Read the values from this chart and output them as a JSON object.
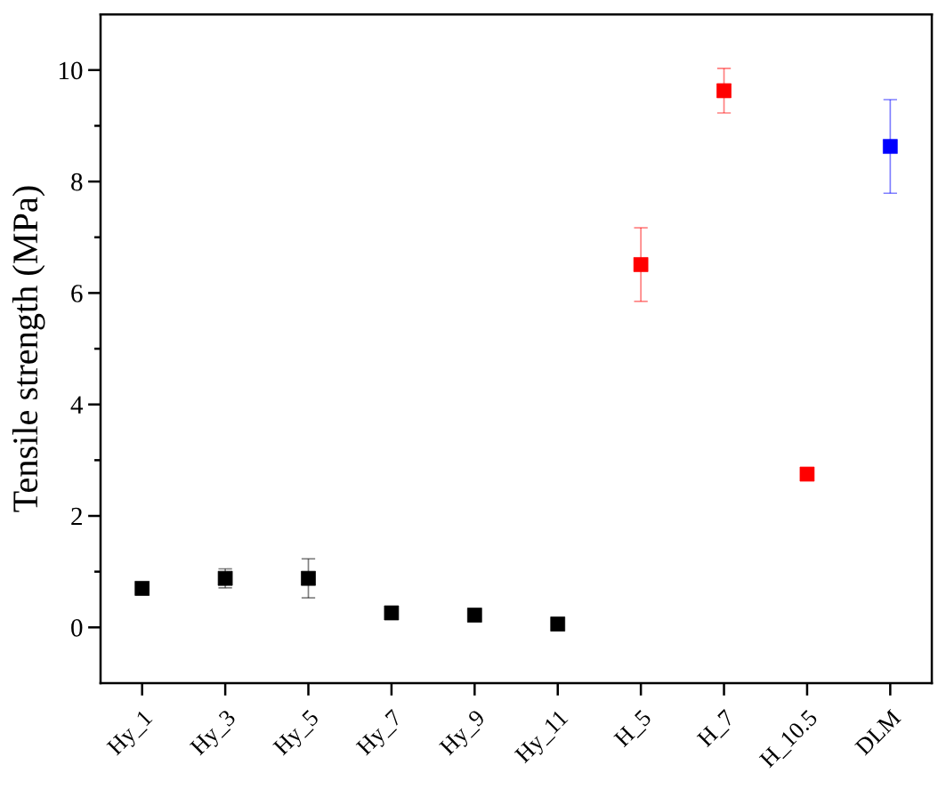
{
  "chart_data": {
    "type": "scatter",
    "ylabel": "Tensile strength (MPa)",
    "categories": [
      "Hy_1",
      "Hy_3",
      "Hy_5",
      "Hy_7",
      "Hy_9",
      "Hy_11",
      "H_5",
      "H_7",
      "H_10.5",
      "DLM"
    ],
    "values": [
      0.7,
      0.88,
      0.88,
      0.26,
      0.22,
      0.06,
      6.51,
      9.63,
      2.75,
      8.63
    ],
    "colors": [
      "#000000",
      "#000000",
      "#000000",
      "#000000",
      "#000000",
      "#000000",
      "#ff0000",
      "#ff0000",
      "#ff0000",
      "#0000ff"
    ],
    "errors": [
      null,
      0.17,
      0.35,
      null,
      null,
      null,
      0.66,
      0.4,
      null,
      0.84
    ],
    "ylim": [
      -1,
      11
    ],
    "yticks": [
      0,
      2,
      4,
      6,
      8,
      10,
      {
        "value": 1,
        "label": null
      },
      {
        "value": 3,
        "label": null
      },
      {
        "value": 5,
        "label": null
      },
      {
        "value": 7,
        "label": null
      },
      {
        "value": 9,
        "label": null
      }
    ],
    "marker": "square"
  }
}
